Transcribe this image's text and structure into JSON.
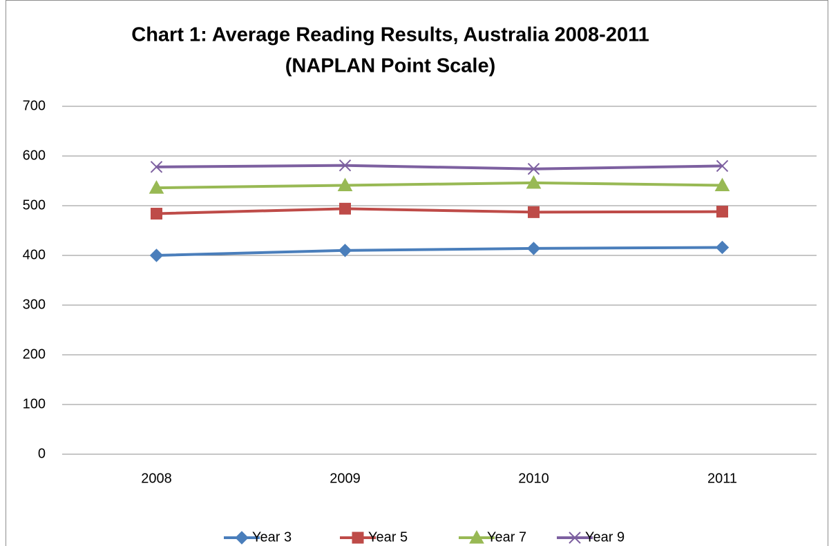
{
  "chart_data": {
    "type": "line",
    "title": "Chart 1: Average Reading Results, Australia 2008-2011",
    "subtitle": "(NAPLAN Point Scale)",
    "categories": [
      "2008",
      "2009",
      "2010",
      "2011"
    ],
    "series": [
      {
        "name": "Year 3",
        "color": "#4a7ebb",
        "marker": "diamond",
        "values": [
          400,
          410,
          414,
          416
        ]
      },
      {
        "name": "Year 5",
        "color": "#be4b48",
        "marker": "square",
        "values": [
          484,
          494,
          487,
          488
        ]
      },
      {
        "name": "Year 7",
        "color": "#98b954",
        "marker": "triangle",
        "values": [
          536,
          541,
          546,
          541
        ]
      },
      {
        "name": "Year 9",
        "color": "#7d60a0",
        "marker": "x",
        "values": [
          578,
          581,
          574,
          580
        ]
      }
    ],
    "ylim": [
      0,
      700
    ],
    "yticks": [
      0,
      100,
      200,
      300,
      400,
      500,
      600,
      700
    ],
    "grid": true,
    "legend": "bottom"
  }
}
